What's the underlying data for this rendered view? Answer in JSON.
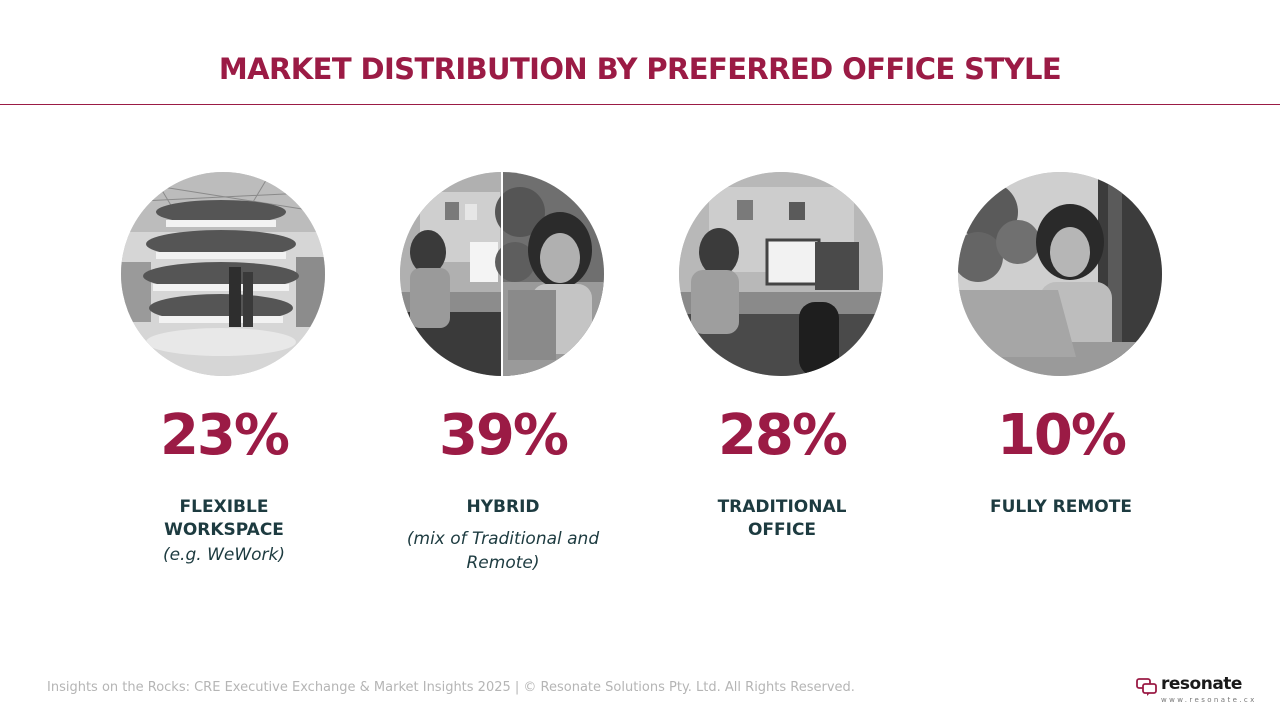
{
  "title": "MARKET DISTRIBUTION BY PREFERRED OFFICE STYLE",
  "colors": {
    "accent": "#9b1b45",
    "label": "#1d3b40",
    "footer": "#b5b5b5"
  },
  "chart_data": {
    "type": "table",
    "categories": [
      "FLEXIBLE WORKSPACE",
      "HYBRID",
      "TRADITIONAL OFFICE",
      "FULLY REMOTE"
    ],
    "values": [
      23,
      39,
      28,
      10
    ],
    "unit": "%"
  },
  "segments": [
    {
      "value": "23%",
      "label": "FLEXIBLE WORKSPACE",
      "note": "(e.g. WeWork)",
      "image": "flexible-workspace-photo"
    },
    {
      "value": "39%",
      "label": "HYBRID",
      "note": "(mix of Traditional and Remote)",
      "image": "hybrid-work-photo"
    },
    {
      "value": "28%",
      "label": "TRADITIONAL OFFICE",
      "note": "",
      "image": "traditional-office-photo"
    },
    {
      "value": "10%",
      "label": "FULLY REMOTE",
      "note": "",
      "image": "remote-work-photo"
    }
  ],
  "footer": "Insights on the Rocks: CRE Executive Exchange & Market Insights 2025 | © Resonate Solutions Pty. Ltd. All Rights Reserved.",
  "logo": {
    "name": "resonate",
    "url": "www.resonate.cx",
    "icon": "speech-bubbles-icon"
  }
}
